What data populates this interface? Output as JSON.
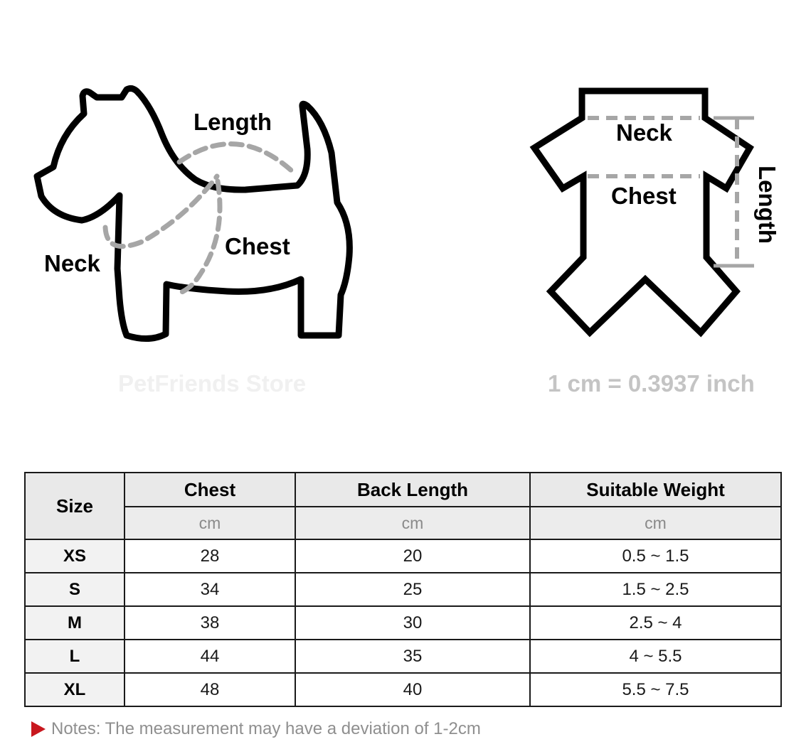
{
  "diagram": {
    "dog_labels": {
      "length": "Length",
      "chest": "Chest",
      "neck": "Neck"
    },
    "garment_labels": {
      "neck": "Neck",
      "chest": "Chest",
      "length": "Length"
    },
    "brand": "PetFriends Store",
    "conversion": "1 cm = 0.3937 inch"
  },
  "table": {
    "headers": {
      "size": "Size",
      "chest": "Chest",
      "back_length": "Back Length",
      "weight": "Suitable Weight"
    },
    "units": [
      "cm",
      "cm",
      "cm"
    ],
    "rows": [
      {
        "size": "XS",
        "chest": "28",
        "back_length": "20",
        "weight": "0.5 ~ 1.5"
      },
      {
        "size": "S",
        "chest": "34",
        "back_length": "25",
        "weight": "1.5 ~ 2.5"
      },
      {
        "size": "M",
        "chest": "38",
        "back_length": "30",
        "weight": "2.5 ~ 4"
      },
      {
        "size": "L",
        "chest": "44",
        "back_length": "35",
        "weight": "4 ~ 5.5"
      },
      {
        "size": "XL",
        "chest": "48",
        "back_length": "40",
        "weight": "5.5 ~ 7.5"
      }
    ]
  },
  "notes": {
    "text": "Notes: The measurement may have a deviation of 1-2cm",
    "icon": "triangle-icon",
    "icon_color": "#c8171e"
  }
}
